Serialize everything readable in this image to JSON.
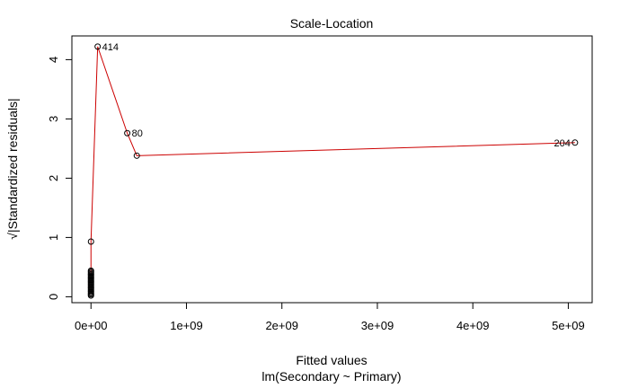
{
  "chart_data": {
    "type": "scatter",
    "title": "Scale-Location",
    "xlabel": "Fitted values",
    "sublabel": "lm(Secondary ~ Primary)",
    "ylabel": "√|Standardized residuals|",
    "xlim": [
      -200000000,
      5250000000
    ],
    "ylim": [
      -0.1,
      4.4
    ],
    "x_ticks": [
      {
        "value": 0,
        "label": "0e+00"
      },
      {
        "value": 1000000000,
        "label": "1e+09"
      },
      {
        "value": 2000000000,
        "label": "2e+09"
      },
      {
        "value": 3000000000,
        "label": "3e+09"
      },
      {
        "value": 4000000000,
        "label": "4e+09"
      },
      {
        "value": 5000000000,
        "label": "5e+09"
      }
    ],
    "y_ticks": [
      {
        "value": 0,
        "label": "0"
      },
      {
        "value": 1,
        "label": "1"
      },
      {
        "value": 2,
        "label": "2"
      },
      {
        "value": 3,
        "label": "3"
      },
      {
        "value": 4,
        "label": "4"
      }
    ],
    "points": [
      {
        "x": 0,
        "y": 0.02
      },
      {
        "x": 0,
        "y": 0.04
      },
      {
        "x": 0,
        "y": 0.06
      },
      {
        "x": 0,
        "y": 0.08
      },
      {
        "x": 0,
        "y": 0.1
      },
      {
        "x": 0,
        "y": 0.12
      },
      {
        "x": 0,
        "y": 0.14
      },
      {
        "x": 0,
        "y": 0.16
      },
      {
        "x": 0,
        "y": 0.18
      },
      {
        "x": 0,
        "y": 0.2
      },
      {
        "x": 0,
        "y": 0.22
      },
      {
        "x": 0,
        "y": 0.24
      },
      {
        "x": 0,
        "y": 0.26
      },
      {
        "x": 0,
        "y": 0.28
      },
      {
        "x": 0,
        "y": 0.3
      },
      {
        "x": 0,
        "y": 0.32
      },
      {
        "x": 0,
        "y": 0.34
      },
      {
        "x": 0,
        "y": 0.36
      },
      {
        "x": 0,
        "y": 0.38
      },
      {
        "x": 0,
        "y": 0.4
      },
      {
        "x": 0,
        "y": 0.42
      },
      {
        "x": 0,
        "y": 0.44
      },
      {
        "x": 0,
        "y": 0.93
      },
      {
        "x": 70000000,
        "y": 4.22,
        "label": "414"
      },
      {
        "x": 380000000,
        "y": 2.76,
        "label": "80"
      },
      {
        "x": 480000000,
        "y": 2.38
      },
      {
        "x": 5070000000,
        "y": 2.6,
        "label": "204"
      }
    ],
    "smoother": [
      [
        0,
        0.05
      ],
      [
        0,
        0.45
      ],
      [
        0,
        0.93
      ],
      [
        70000000,
        4.22
      ],
      [
        380000000,
        2.76
      ],
      [
        480000000,
        2.38
      ],
      [
        5070000000,
        2.6
      ]
    ],
    "point_color": "#000000",
    "smoother_color": "#cc0000"
  }
}
